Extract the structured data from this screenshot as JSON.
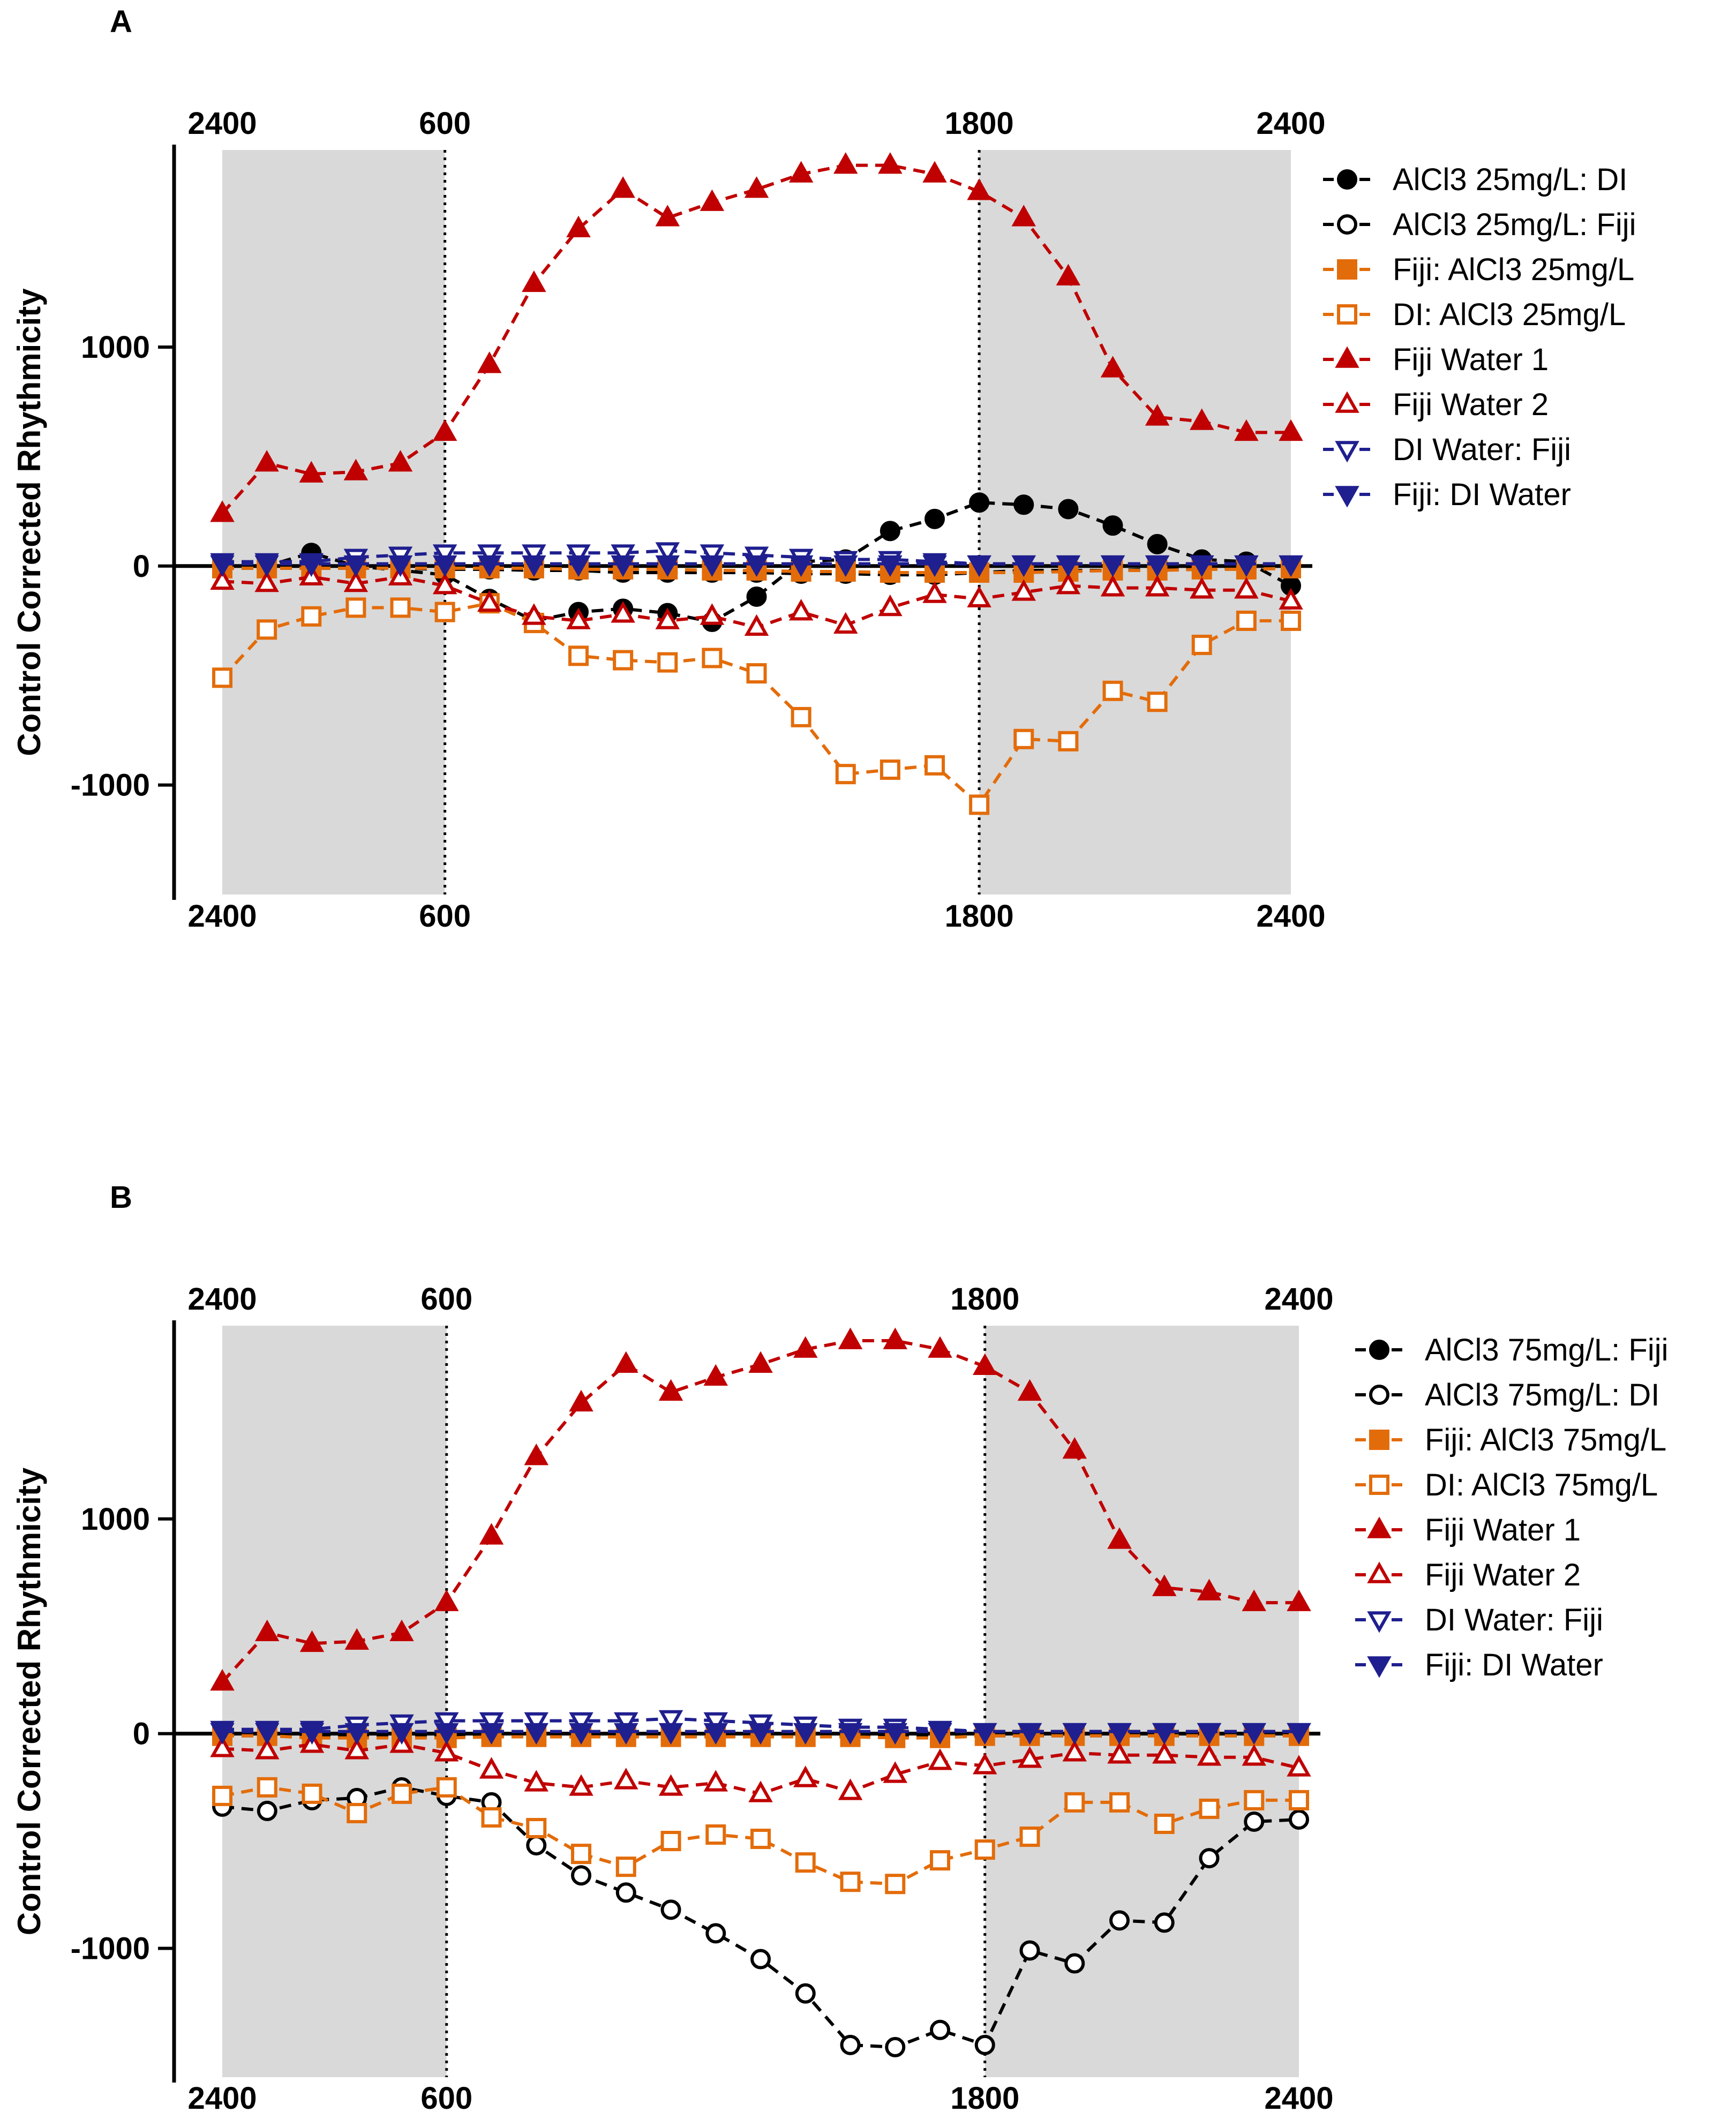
{
  "chart_data": [
    {
      "panel_label": "A",
      "type": "line",
      "ylabel": "Control Corrected Rhythmicity",
      "ylim": [
        -1600,
        1900
      ],
      "yticks": [
        1000,
        0,
        -1000
      ],
      "ytick_labels": [
        "1000",
        "0",
        "-1000"
      ],
      "x": [
        0,
        1,
        2,
        3,
        4,
        5,
        6,
        7,
        8,
        9,
        10,
        11,
        12,
        13,
        14,
        15,
        16,
        17,
        18,
        19,
        20,
        21,
        22,
        23,
        24
      ],
      "xlim": [
        0,
        24
      ],
      "top_ticks": [
        {
          "x": 0,
          "label": "2400"
        },
        {
          "x": 5,
          "label": "600"
        },
        {
          "x": 17,
          "label": "1800"
        },
        {
          "x": 24,
          "label": "2400"
        }
      ],
      "bottom_ticks": [
        {
          "x": 0,
          "label": "2400"
        },
        {
          "x": 5,
          "label": "600"
        },
        {
          "x": 17,
          "label": "1800"
        },
        {
          "x": 24,
          "label": "2400"
        }
      ],
      "dark_periods": [
        [
          0,
          5
        ],
        [
          17,
          24
        ]
      ],
      "light_change_lines": [
        5,
        17
      ],
      "series": [
        {
          "name": "AlCl3 25mg/L: DI",
          "marker": "circle",
          "filled": true,
          "color": "#000000",
          "values": [
            0,
            0,
            60,
            0,
            -20,
            -40,
            -150,
            -250,
            -210,
            -195,
            -215,
            -255,
            -140,
            20,
            30,
            160,
            215,
            290,
            280,
            260,
            185,
            100,
            30,
            20,
            -90
          ]
        },
        {
          "name": "AlCl3 25mg/L: Fiji",
          "marker": "circle",
          "filled": false,
          "color": "#000000",
          "values": [
            -10,
            -10,
            -10,
            -10,
            -10,
            -15,
            -15,
            -20,
            -20,
            -30,
            -30,
            -30,
            -30,
            -35,
            -35,
            -40,
            -40,
            -30,
            -20,
            -20,
            -20,
            -15,
            -15,
            -10,
            -10
          ]
        },
        {
          "name": "Fiji: AlCl3 25mg/L",
          "marker": "square",
          "filled": true,
          "color": "#E36C0A",
          "values": [
            -10,
            -10,
            -10,
            -10,
            -10,
            -10,
            -10,
            -10,
            -15,
            -15,
            -15,
            -20,
            -20,
            -25,
            -25,
            -30,
            -30,
            -30,
            -30,
            -25,
            -20,
            -20,
            -15,
            -15,
            -10
          ]
        },
        {
          "name": "DI: AlCl3 25mg/L",
          "marker": "square",
          "filled": false,
          "color": "#E36C0A",
          "values": [
            -510,
            -290,
            -230,
            -190,
            -190,
            -210,
            -170,
            -260,
            -410,
            -430,
            -440,
            -420,
            -490,
            -690,
            -950,
            -930,
            -910,
            -1090,
            -790,
            -800,
            -570,
            -620,
            -360,
            -250,
            -250
          ]
        },
        {
          "name": "Fiji Water 1",
          "marker": "triangle-up",
          "filled": true,
          "color": "#C00000",
          "values": [
            240,
            470,
            420,
            430,
            470,
            610,
            920,
            1290,
            1540,
            1720,
            1590,
            1660,
            1720,
            1790,
            1830,
            1830,
            1790,
            1710,
            1590,
            1320,
            900,
            680,
            660,
            610,
            610
          ]
        },
        {
          "name": "Fiji Water 2",
          "marker": "triangle-up",
          "filled": false,
          "color": "#C00000",
          "values": [
            -70,
            -80,
            -50,
            -80,
            -50,
            -90,
            -170,
            -230,
            -250,
            -220,
            -250,
            -230,
            -280,
            -210,
            -270,
            -190,
            -130,
            -150,
            -120,
            -90,
            -100,
            -100,
            -110,
            -110,
            -160
          ]
        },
        {
          "name": "DI Water: Fiji",
          "marker": "triangle-down",
          "filled": false,
          "color": "#1F1F8F",
          "values": [
            20,
            20,
            20,
            40,
            50,
            60,
            60,
            60,
            60,
            60,
            70,
            60,
            50,
            40,
            30,
            30,
            20,
            10,
            10,
            10,
            10,
            10,
            10,
            10,
            10
          ]
        },
        {
          "name": "Fiji: DI Water",
          "marker": "triangle-down",
          "filled": true,
          "color": "#1F1F8F",
          "values": [
            10,
            10,
            10,
            10,
            10,
            10,
            10,
            10,
            10,
            10,
            10,
            10,
            10,
            10,
            10,
            10,
            10,
            10,
            10,
            10,
            10,
            10,
            10,
            10,
            10
          ]
        }
      ]
    },
    {
      "panel_label": "B",
      "type": "line",
      "ylabel": "Control Corrected Rhythmicity",
      "ylim": [
        -1600,
        1900
      ],
      "yticks": [
        1000,
        0,
        -1000
      ],
      "ytick_labels": [
        "1000",
        "0",
        "-1000"
      ],
      "x": [
        0,
        1,
        2,
        3,
        4,
        5,
        6,
        7,
        8,
        9,
        10,
        11,
        12,
        13,
        14,
        15,
        16,
        17,
        18,
        19,
        20,
        21,
        22,
        23,
        24
      ],
      "xlim": [
        0,
        24
      ],
      "top_ticks": [
        {
          "x": 0,
          "label": "2400"
        },
        {
          "x": 5,
          "label": "600"
        },
        {
          "x": 17,
          "label": "1800"
        },
        {
          "x": 24,
          "label": "2400"
        }
      ],
      "bottom_ticks": [
        {
          "x": 0,
          "label": "2400"
        },
        {
          "x": 5,
          "label": "600"
        },
        {
          "x": 17,
          "label": "1800"
        },
        {
          "x": 24,
          "label": "2400"
        }
      ],
      "dark_periods": [
        [
          0,
          5
        ],
        [
          17,
          24
        ]
      ],
      "light_change_lines": [
        5,
        17
      ],
      "series": [
        {
          "name": "AlCl3 75mg/L: Fiji",
          "marker": "circle",
          "filled": true,
          "color": "#000000",
          "values": [
            -10,
            -10,
            -10,
            -10,
            -10,
            -10,
            -10,
            -10,
            -10,
            -10,
            -10,
            -10,
            -10,
            -10,
            -10,
            -10,
            -10,
            -10,
            -10,
            -10,
            -10,
            -10,
            -10,
            -10,
            -10
          ]
        },
        {
          "name": "AlCl3 75mg/L: DI",
          "marker": "circle",
          "filled": false,
          "color": "#000000",
          "values": [
            -340,
            -360,
            -310,
            -300,
            -250,
            -290,
            -320,
            -520,
            -660,
            -740,
            -820,
            -930,
            -1050,
            -1210,
            -1450,
            -1460,
            -1380,
            -1450,
            -1010,
            -1070,
            -870,
            -880,
            -580,
            -410,
            -400
          ]
        },
        {
          "name": "Fiji: AlCl3 75mg/L",
          "marker": "square",
          "filled": true,
          "color": "#E36C0A",
          "values": [
            -10,
            -10,
            -20,
            -20,
            -20,
            -20,
            -15,
            -15,
            -15,
            -15,
            -15,
            -15,
            -15,
            -15,
            -15,
            -20,
            -20,
            -10,
            -10,
            -10,
            -10,
            -10,
            -10,
            -10,
            -10
          ]
        },
        {
          "name": "DI: AlCl3 75mg/L",
          "marker": "square",
          "filled": false,
          "color": "#E36C0A",
          "values": [
            -290,
            -250,
            -280,
            -370,
            -280,
            -250,
            -390,
            -440,
            -560,
            -620,
            -500,
            -470,
            -490,
            -600,
            -690,
            -700,
            -590,
            -540,
            -480,
            -320,
            -320,
            -420,
            -350,
            -310,
            -310
          ]
        },
        {
          "name": "Fiji Water 1",
          "marker": "triangle-up",
          "filled": true,
          "color": "#C00000",
          "values": [
            240,
            470,
            420,
            430,
            470,
            610,
            920,
            1290,
            1540,
            1720,
            1590,
            1660,
            1720,
            1790,
            1830,
            1830,
            1790,
            1710,
            1590,
            1320,
            900,
            680,
            660,
            610,
            610
          ]
        },
        {
          "name": "Fiji Water 2",
          "marker": "triangle-up",
          "filled": false,
          "color": "#C00000",
          "values": [
            -70,
            -80,
            -50,
            -80,
            -50,
            -90,
            -170,
            -230,
            -250,
            -220,
            -250,
            -230,
            -280,
            -210,
            -270,
            -190,
            -130,
            -150,
            -120,
            -90,
            -100,
            -100,
            -110,
            -110,
            -160
          ]
        },
        {
          "name": "DI Water: Fiji",
          "marker": "triangle-down",
          "filled": false,
          "color": "#1F1F8F",
          "values": [
            20,
            20,
            20,
            40,
            50,
            60,
            60,
            60,
            60,
            60,
            70,
            60,
            50,
            40,
            30,
            30,
            20,
            10,
            10,
            10,
            10,
            10,
            10,
            10,
            10
          ]
        },
        {
          "name": "Fiji: DI Water",
          "marker": "triangle-down",
          "filled": true,
          "color": "#1F1F8F",
          "values": [
            10,
            10,
            10,
            10,
            10,
            10,
            10,
            10,
            10,
            10,
            10,
            10,
            10,
            10,
            10,
            10,
            10,
            10,
            10,
            10,
            10,
            10,
            10,
            10,
            10
          ]
        }
      ]
    }
  ]
}
